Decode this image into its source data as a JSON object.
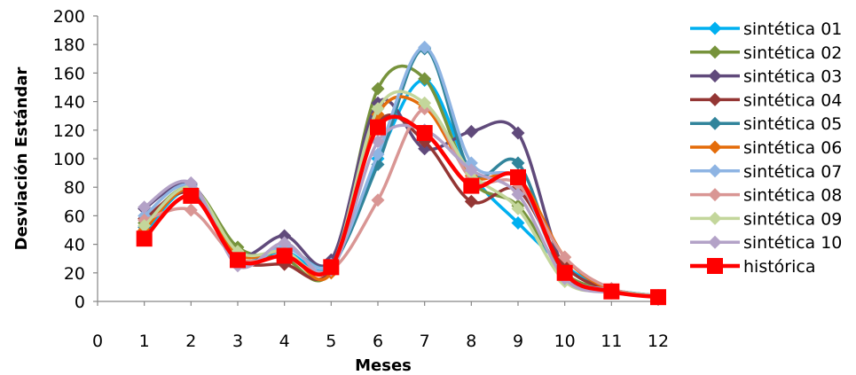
{
  "chart_data": {
    "type": "line",
    "title": "",
    "xlabel": "Meses",
    "ylabel": "Desviación Estándar",
    "xlim": [
      0,
      12
    ],
    "ylim": [
      0,
      200
    ],
    "x_ticks": [
      0,
      1,
      2,
      3,
      4,
      5,
      6,
      7,
      8,
      9,
      10,
      11,
      12
    ],
    "y_ticks": [
      0,
      20,
      40,
      60,
      80,
      100,
      120,
      140,
      160,
      180,
      200
    ],
    "grid": false,
    "smooth": true,
    "legend_position": "right",
    "x": [
      1,
      2,
      3,
      4,
      5,
      6,
      7,
      8,
      9,
      10,
      11,
      12
    ],
    "series": [
      {
        "name": "sintética 01",
        "color": "#00B0F0",
        "marker": "diamond",
        "values": [
          48,
          78,
          30,
          35,
          24,
          100,
          155,
          90,
          55,
          25,
          7,
          4
        ]
      },
      {
        "name": "sintética 02",
        "color": "#77933C",
        "marker": "diamond",
        "values": [
          55,
          80,
          38,
          30,
          22,
          149,
          156,
          85,
          67,
          20,
          8,
          4
        ]
      },
      {
        "name": "sintética 03",
        "color": "#604A7B",
        "marker": "diamond",
        "values": [
          65,
          82,
          33,
          46,
          29,
          139,
          107,
          119,
          118,
          22,
          8,
          4
        ]
      },
      {
        "name": "sintética 04",
        "color": "#943634",
        "marker": "diamond",
        "values": [
          58,
          76,
          30,
          26,
          22,
          125,
          112,
          70,
          78,
          25,
          8,
          4
        ]
      },
      {
        "name": "sintética 05",
        "color": "#31849B",
        "marker": "diamond",
        "values": [
          52,
          78,
          28,
          38,
          26,
          96,
          177,
          90,
          97,
          18,
          8,
          4
        ]
      },
      {
        "name": "sintética 06",
        "color": "#E46C0A",
        "marker": "diamond",
        "values": [
          50,
          79,
          33,
          35,
          20,
          131,
          136,
          88,
          87,
          31,
          8,
          4
        ]
      },
      {
        "name": "sintética 07",
        "color": "#8EB4E3",
        "marker": "diamond",
        "values": [
          60,
          81,
          27,
          38,
          26,
          103,
          178,
          97,
          85,
          20,
          8,
          4
        ]
      },
      {
        "name": "sintética 08",
        "color": "#D99694",
        "marker": "diamond",
        "values": [
          57,
          64,
          30,
          31,
          22,
          71,
          135,
          86,
          82,
          31,
          9,
          4
        ]
      },
      {
        "name": "sintética 09",
        "color": "#C3D69B",
        "marker": "diamond",
        "values": [
          53,
          80,
          35,
          35,
          24,
          135,
          139,
          90,
          65,
          14,
          7,
          4
        ]
      },
      {
        "name": "sintética 10",
        "color": "#B3A2C7",
        "marker": "diamond",
        "values": [
          66,
          83,
          25,
          41,
          22,
          112,
          120,
          92,
          75,
          16,
          6,
          4
        ]
      },
      {
        "name": "histórica",
        "color": "#FF0000",
        "marker": "square",
        "values": [
          44,
          74,
          29,
          32,
          24,
          122,
          118,
          81,
          87,
          20,
          7,
          3
        ]
      }
    ]
  }
}
